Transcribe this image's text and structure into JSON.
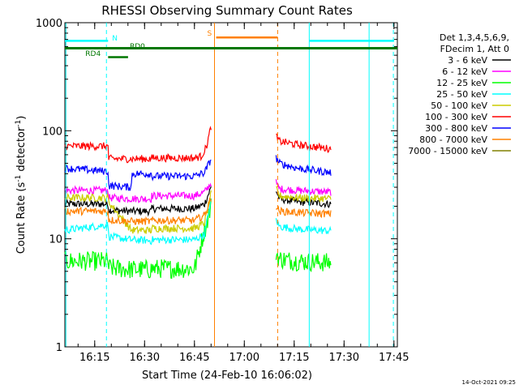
{
  "chart_data": {
    "type": "line",
    "title": "RHESSI Observing Summary Count Rates",
    "xlabel": "Start Time (24-Feb-10 16:06:02)",
    "ylabel_main": "Count Rate (s",
    "ylabel_sup1": "-1",
    "ylabel_mid": " detector",
    "ylabel_sup2": "-1",
    "ylabel_end": ")",
    "y_scale": "log",
    "ylim": [
      1,
      1000
    ],
    "xlim_minutes": [
      0,
      100
    ],
    "x_ticks": [
      {
        "label": "16:15",
        "minute": 8.97
      },
      {
        "label": "16:30",
        "minute": 23.97
      },
      {
        "label": "16:45",
        "minute": 38.97
      },
      {
        "label": "17:00",
        "minute": 53.97
      },
      {
        "label": "17:15",
        "minute": 68.97
      },
      {
        "label": "17:30",
        "minute": 83.97
      },
      {
        "label": "17:45",
        "minute": 98.97
      }
    ],
    "y_ticks": [
      {
        "label": "1",
        "value": 1
      },
      {
        "label": "10",
        "value": 10
      },
      {
        "label": "100",
        "value": 100
      },
      {
        "label": "1000",
        "value": 1000
      }
    ],
    "legend_header": [
      "Det 1,3,4,5,6,9,",
      "FDecim 1, Att 0"
    ],
    "legend_position": "right",
    "timestamp": "14-Oct-2021 09:25",
    "flags": [
      {
        "label": "N",
        "color": "#00ffff"
      },
      {
        "label": "S",
        "color": "#ff8000"
      },
      {
        "label": "RD0",
        "color": "#007700"
      },
      {
        "label": "RD4",
        "color": "#007700"
      }
    ],
    "series": [
      {
        "name": "3 - 6 keV",
        "color": "#000000",
        "segments": [
          {
            "x": [
              0,
              13,
              13.1,
              20,
              26,
              26.1,
              39,
              42,
              44
            ],
            "y": [
              21,
              21,
              18.5,
              18,
              18,
              19,
              19,
              21,
              30
            ]
          },
          {
            "x": [
              63.5,
              64.5,
              70,
              80
            ],
            "y": [
              28,
              23.5,
              22,
              21
            ]
          }
        ]
      },
      {
        "name": "6 - 12 keV",
        "color": "#ff00ff",
        "segments": [
          {
            "x": [
              0,
              13,
              13.1,
              20,
              26,
              26.1,
              39,
              42,
              44
            ],
            "y": [
              28,
              28,
              24,
              23.5,
              23.5,
              25,
              25,
              27,
              33
            ]
          },
          {
            "x": [
              63.5,
              64.5,
              70,
              80
            ],
            "y": [
              33,
              29,
              28,
              27
            ]
          }
        ]
      },
      {
        "name": "12 - 25 keV",
        "color": "#00ff00",
        "segments": [
          {
            "x": [
              0,
              13,
              13.1,
              20,
              26,
              26.1,
              39,
              42,
              44
            ],
            "y": [
              6.2,
              6.2,
              5.4,
              5.2,
              5.2,
              5.3,
              5.3,
              12,
              20
            ]
          },
          {
            "x": [
              63.5,
              64.5,
              70,
              80
            ],
            "y": [
              7.5,
              6.5,
              6.2,
              6.0
            ]
          }
        ]
      },
      {
        "name": "25 - 50 keV",
        "color": "#00ffff",
        "segments": [
          {
            "x": [
              0,
              13,
              13.1,
              20,
              26,
              26.1,
              39,
              42,
              44
            ],
            "y": [
              12,
              13.5,
              10.5,
              9.8,
              9.6,
              9.8,
              9.8,
              11,
              23
            ]
          },
          {
            "x": [
              63.5,
              64.5,
              70,
              80
            ],
            "y": [
              15,
              13,
              12.3,
              11.8
            ]
          }
        ]
      },
      {
        "name": "50 - 100 keV",
        "color": "#cccc00",
        "segments": [
          {
            "x": [
              0,
              13,
              13.1,
              20,
              26,
              26.1,
              39,
              42,
              44
            ],
            "y": [
              24,
              24,
              22,
              12,
              12,
              12.5,
              12.5,
              14,
              26
            ]
          },
          {
            "x": [
              63.5,
              64.5,
              70,
              80
            ],
            "y": [
              29,
              25,
              24,
              23.5
            ]
          }
        ]
      },
      {
        "name": "100 - 300 keV",
        "color": "#ff0000",
        "segments": [
          {
            "x": [
              0,
              13,
              13.1,
              20,
              26,
              26.1,
              39,
              41,
              42.5,
              44
            ],
            "y": [
              72,
              72,
              55,
              55,
              55,
              56,
              56,
              58,
              70,
              110
            ]
          },
          {
            "x": [
              63.5,
              64.5,
              70,
              80
            ],
            "y": [
              88,
              80,
              74,
              68
            ]
          }
        ]
      },
      {
        "name": "300 - 800 keV",
        "color": "#0000ff",
        "segments": [
          {
            "x": [
              0,
              13,
              13.1,
              20,
              20.1,
              26,
              26.1,
              39,
              42,
              44
            ],
            "y": [
              45,
              42,
              31,
              30,
              40,
              40,
              38,
              38,
              41,
              55
            ]
          },
          {
            "x": [
              63.5,
              64.5,
              70,
              80
            ],
            "y": [
              56,
              50,
              45,
              41
            ]
          }
        ]
      },
      {
        "name": "800 - 7000 keV",
        "color": "#ff8000",
        "segments": [
          {
            "x": [
              0,
              13,
              13.1,
              20,
              26,
              26.1,
              39,
              42,
              44
            ],
            "y": [
              18,
              18,
              15,
              14.5,
              14.5,
              14.8,
              14.8,
              16.5,
              24
            ]
          },
          {
            "x": [
              63.5,
              64.5,
              70,
              80
            ],
            "y": [
              20,
              18,
              17.5,
              17
            ]
          }
        ]
      },
      {
        "name": "7000 - 15000 keV",
        "color": "#808000",
        "segments": []
      }
    ],
    "markers": {
      "solid_cyan_minutes": [
        0.3,
        73.5,
        91.5
      ],
      "dashed_cyan_minutes": [
        12.5,
        98.8
      ],
      "solid_orange_minutes": [
        45
      ],
      "dashed_orange_minutes": [
        64
      ]
    },
    "bars": [
      {
        "flag": "N",
        "color": "#00ffff",
        "y": 680,
        "x_ranges": [
          [
            0,
            13
          ],
          [
            73.5,
            99
          ]
        ]
      },
      {
        "flag": "RD0",
        "color": "#007700",
        "y": 580,
        "x_ranges": [
          [
            0,
            100
          ]
        ]
      },
      {
        "flag": "RD4",
        "color": "#007700",
        "y": 480,
        "x_ranges": [
          [
            13,
            19
          ]
        ]
      },
      {
        "flag": "S",
        "color": "#ff8000",
        "y": 730,
        "x_ranges": [
          [
            45.5,
            64
          ]
        ]
      }
    ]
  }
}
